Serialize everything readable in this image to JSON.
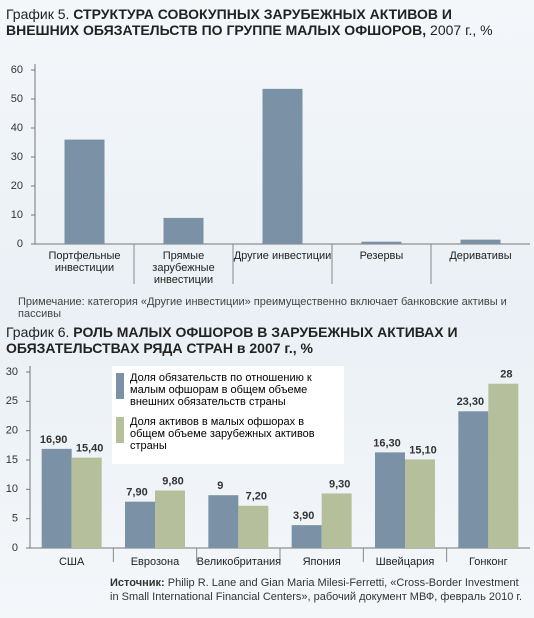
{
  "chart_data": [
    {
      "type": "bar",
      "label": "График 5.",
      "title": "СТРУКТУРА СОВОКУПНЫХ ЗАРУБЕЖНЫХ АКТИВОВ И ВНЕШНИХ ОБЯЗАТЕЛЬСТВ ПО ГРУППЕ МАЛЫХ ОФШОРОВ,",
      "subtitle": "2007 г., %",
      "categories": [
        "Портфельные инвестиции",
        "Прямые зарубежные инвестиции",
        "Другие инвестиции",
        "Резервы",
        "Деривативы"
      ],
      "values": [
        36,
        9,
        53.5,
        0.8,
        1.5
      ],
      "color": "#7b92a6",
      "ylim": [
        0,
        60
      ],
      "yticks": [
        0,
        10,
        20,
        30,
        40,
        50,
        60
      ],
      "note": "Примечание: категория «Другие инвестиции» преимущественно включает банковские активы и пассивы"
    },
    {
      "type": "grouped-bar",
      "label": "График 6.",
      "title": "РОЛЬ МАЛЫХ ОФШОРОВ В ЗАРУБЕЖНЫХ АКТИВАХ И ОБЯЗАТЕЛЬСТВАХ РЯДА СТРАН в 2007 г., %",
      "categories": [
        "США",
        "Еврозона",
        "Великобритания",
        "Япония",
        "Швейцария",
        "Гонконг"
      ],
      "series": [
        {
          "name": "Доля обязательств по отношению к малым офшорам в общем объеме внешних обязательств страны",
          "color": "#7b92a6",
          "values": [
            16.9,
            7.9,
            9,
            3.9,
            16.3,
            23.3
          ],
          "value_labels": [
            "16,90",
            "7,90",
            "9",
            "3,90",
            "16,30",
            "23,30"
          ]
        },
        {
          "name": "Доля активов в малых офшорах в общем объеме зарубежных активов страны",
          "color": "#b5bf9c",
          "values": [
            15.4,
            9.8,
            7.2,
            9.3,
            15.1,
            28
          ],
          "value_labels": [
            "15,40",
            "9,80",
            "7,20",
            "9,30",
            "15,10",
            "28"
          ]
        }
      ],
      "ylim": [
        0,
        30
      ],
      "yticks": [
        0,
        5,
        10,
        15,
        20,
        25,
        30
      ],
      "source_label": "Источник:",
      "source": "Philip R. Lane and Gian Maria Milesi-Ferretti, «Cross-Border Investment in Small International Financial Centers», рабочий документ МВФ, февраль 2010 г."
    }
  ]
}
